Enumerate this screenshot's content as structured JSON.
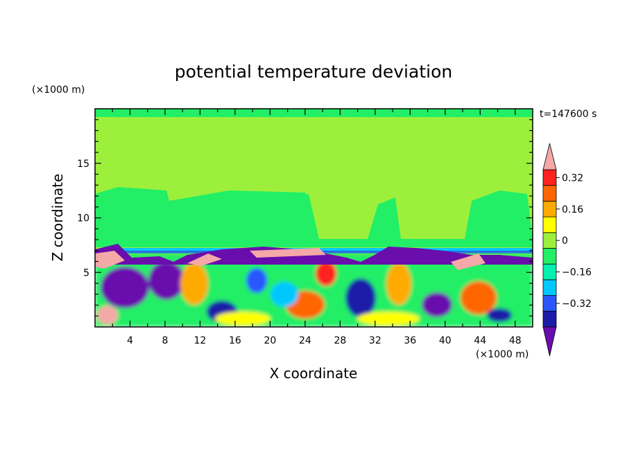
{
  "chart_data": {
    "type": "heatmap",
    "title": "potential temperature deviation",
    "xlabel": "X coordinate",
    "ylabel": "Z coordinate",
    "x_unit": "(×1000 m)",
    "y_unit": "(×1000 m)",
    "time_label": "t=147600 s",
    "xlim": [
      0,
      50
    ],
    "ylim": [
      0,
      20
    ],
    "x_ticks": [
      4,
      8,
      12,
      16,
      20,
      24,
      28,
      32,
      36,
      40,
      44,
      48
    ],
    "x_tick_labels": [
      "4",
      "8",
      "12",
      "16",
      "20",
      "24",
      "28",
      "32",
      "36",
      "40",
      "44",
      "48"
    ],
    "y_ticks": [
      5,
      10,
      15
    ],
    "y_tick_labels": [
      "5",
      "10",
      "15"
    ],
    "grid": false,
    "colorbar": {
      "levels": [
        -0.4,
        -0.32,
        -0.24,
        -0.16,
        -0.08,
        0,
        0.08,
        0.16,
        0.24,
        0.32,
        0.4
      ],
      "colors": [
        "#6a0dad",
        "#1c1ca8",
        "#2a55ff",
        "#00c8ff",
        "#00f0b0",
        "#22ee66",
        "#9cf03c",
        "#ffff00",
        "#ffaa00",
        "#ff6600",
        "#ff2020",
        "#f4a8a8"
      ],
      "under_color": "#6a0dad",
      "over_color": "#f4a8a8",
      "label_values": [
        "0.32",
        "0.16",
        "0",
        "−0.16",
        "−0.32"
      ]
    }
  }
}
